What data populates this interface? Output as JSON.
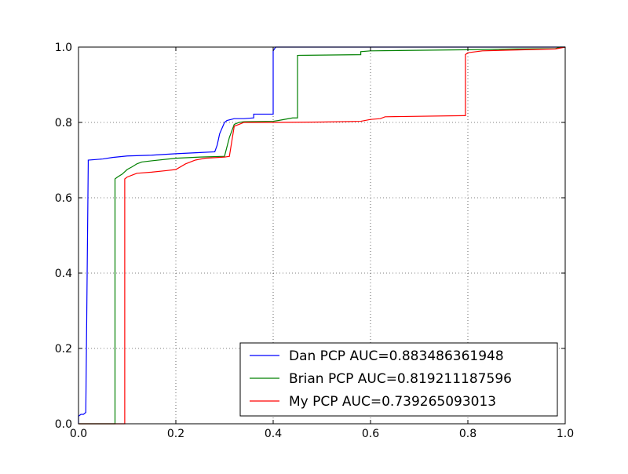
{
  "chart_data": {
    "type": "line",
    "title": "",
    "xlabel": "",
    "ylabel": "",
    "xlim": [
      0.0,
      1.0
    ],
    "ylim": [
      0.0,
      1.0
    ],
    "grid": true,
    "legend_placement": "lower-right",
    "xticks": [
      "0.0",
      "0.2",
      "0.4",
      "0.6",
      "0.8",
      "1.0"
    ],
    "yticks": [
      "0.0",
      "0.2",
      "0.4",
      "0.6",
      "0.8",
      "1.0"
    ],
    "series": [
      {
        "name": "Dan PCP AUC=0.883486361948",
        "color": "#0000ff",
        "x": [
          0.0,
          0.0,
          0.005,
          0.01,
          0.015,
          0.015,
          0.02,
          0.02,
          0.05,
          0.07,
          0.1,
          0.15,
          0.2,
          0.25,
          0.28,
          0.285,
          0.29,
          0.3,
          0.305,
          0.32,
          0.34,
          0.36,
          0.36,
          0.4,
          0.4,
          0.405,
          0.41,
          1.0
        ],
        "y": [
          0.0,
          0.02,
          0.025,
          0.025,
          0.03,
          0.03,
          0.69,
          0.7,
          0.703,
          0.707,
          0.711,
          0.713,
          0.717,
          0.72,
          0.722,
          0.74,
          0.77,
          0.8,
          0.805,
          0.81,
          0.81,
          0.812,
          0.822,
          0.822,
          0.99,
          1.0,
          1.0,
          1.0
        ]
      },
      {
        "name": "Brian PCP AUC=0.819211187596",
        "color": "#008000",
        "x": [
          0.0,
          0.075,
          0.075,
          0.08,
          0.09,
          0.1,
          0.11,
          0.12,
          0.13,
          0.15,
          0.2,
          0.25,
          0.3,
          0.31,
          0.32,
          0.33,
          0.34,
          0.4,
          0.41,
          0.44,
          0.44,
          0.45,
          0.45,
          0.58,
          0.58,
          0.6,
          0.8,
          0.9,
          0.98,
          0.99,
          1.0
        ],
        "y": [
          0.0,
          0.0,
          0.65,
          0.655,
          0.663,
          0.675,
          0.682,
          0.69,
          0.695,
          0.698,
          0.705,
          0.708,
          0.71,
          0.76,
          0.795,
          0.8,
          0.802,
          0.803,
          0.805,
          0.812,
          0.812,
          0.812,
          0.978,
          0.98,
          0.988,
          0.99,
          0.993,
          0.995,
          0.996,
          1.0,
          1.0
        ]
      },
      {
        "name": "My PCP AUC=0.739265093013",
        "color": "#ff0000",
        "x": [
          0.0,
          0.095,
          0.095,
          0.1,
          0.11,
          0.12,
          0.15,
          0.18,
          0.2,
          0.22,
          0.24,
          0.26,
          0.3,
          0.31,
          0.32,
          0.33,
          0.34,
          0.4,
          0.5,
          0.58,
          0.6,
          0.62,
          0.63,
          0.79,
          0.795,
          0.795,
          0.8,
          0.83,
          0.98,
          1.0
        ],
        "y": [
          0.0,
          0.0,
          0.65,
          0.655,
          0.66,
          0.665,
          0.668,
          0.672,
          0.675,
          0.69,
          0.7,
          0.705,
          0.708,
          0.71,
          0.79,
          0.795,
          0.8,
          0.8,
          0.801,
          0.803,
          0.808,
          0.81,
          0.815,
          0.818,
          0.818,
          0.98,
          0.985,
          0.99,
          0.995,
          1.0
        ]
      }
    ]
  }
}
